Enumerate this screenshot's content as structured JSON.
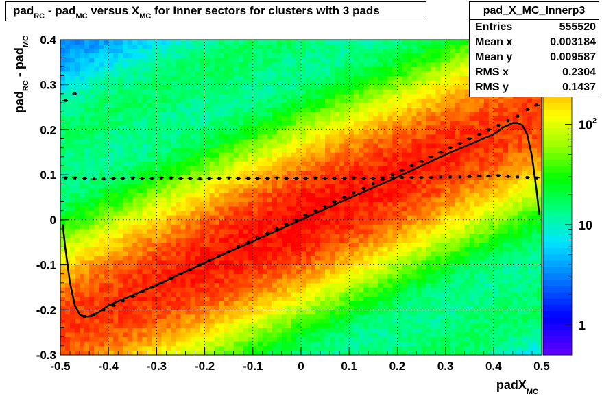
{
  "chart_data": {
    "type": "heatmap",
    "title": {
      "parts": [
        "pad",
        "RC",
        " - pad",
        "MC",
        " versus X",
        "MC",
        " for Inner sectors for clusters with 3 pads"
      ]
    },
    "xlabel": {
      "main": "padX",
      "sub": "MC"
    },
    "ylabel": {
      "p1": "pad",
      "s1": "RC",
      "p2": " - pad",
      "s2": "MC"
    },
    "xlim": [
      -0.5,
      0.5
    ],
    "ylim": [
      -0.3,
      0.4
    ],
    "xticks": [
      "-0.5",
      "-0.4",
      "-0.3",
      "-0.2",
      "-0.1",
      "0",
      "0.1",
      "0.2",
      "0.3",
      "0.4",
      "0.5"
    ],
    "yticks": [
      "-0.3",
      "-0.2",
      "-0.1",
      "0",
      "0.1",
      "0.2",
      "0.3",
      "0.4"
    ],
    "z_scale": "log",
    "zlim": [
      0.5,
      700
    ],
    "z_tick_labels": [
      {
        "value": 1,
        "base": "1",
        "exp": ""
      },
      {
        "value": 10,
        "base": "10",
        "exp": ""
      },
      {
        "value": 100,
        "base": "10",
        "exp": "2"
      }
    ],
    "grid": true,
    "stats": {
      "name": "pad_X_MC_Innerp3",
      "rows": [
        {
          "label": "Entries",
          "value": "555520"
        },
        {
          "label": "Mean x",
          "value": "0.003184"
        },
        {
          "label": "Mean y",
          "value": "0.009587"
        },
        {
          "label": "RMS x",
          "value": "0.2304"
        },
        {
          "label": "RMS y",
          "value": "0.1437"
        }
      ]
    },
    "density_model": {
      "band_slope": 0.48,
      "band_offset": 0.0,
      "band_width": 0.09,
      "peak_counts": 650,
      "secondary_bands": [
        {
          "offset": 0.44,
          "slope": 0.48,
          "width": 0.06,
          "peak": 10
        },
        {
          "offset": -0.44,
          "slope": 0.48,
          "width": 0.06,
          "peak": 10
        }
      ],
      "background": 40
    },
    "series": [
      {
        "kind": "fit-curve",
        "x": [
          -0.495,
          -0.49,
          -0.48,
          -0.47,
          -0.46,
          -0.45,
          -0.44,
          -0.43,
          -0.42,
          -0.4,
          -0.3,
          -0.2,
          -0.1,
          0.0,
          0.1,
          0.2,
          0.3,
          0.4,
          0.42,
          0.43,
          0.44,
          0.45,
          0.46,
          0.47,
          0.48,
          0.49,
          0.495
        ],
        "y": [
          -0.01,
          -0.06,
          -0.14,
          -0.19,
          -0.21,
          -0.215,
          -0.215,
          -0.21,
          -0.205,
          -0.19,
          -0.145,
          -0.095,
          -0.048,
          0.0,
          0.048,
          0.095,
          0.145,
          0.19,
          0.205,
          0.21,
          0.215,
          0.215,
          0.21,
          0.19,
          0.14,
          0.06,
          0.01
        ]
      },
      {
        "kind": "mean-profile",
        "x": [
          -0.49,
          -0.47,
          -0.45,
          -0.43,
          -0.41,
          -0.39,
          -0.37,
          -0.35,
          -0.33,
          -0.31,
          -0.29,
          -0.27,
          -0.25,
          -0.23,
          -0.21,
          -0.19,
          -0.17,
          -0.15,
          -0.13,
          -0.11,
          -0.09,
          -0.07,
          -0.05,
          -0.03,
          -0.01,
          0.01,
          0.03,
          0.05,
          0.07,
          0.09,
          0.11,
          0.13,
          0.15,
          0.17,
          0.19,
          0.21,
          0.23,
          0.25,
          0.27,
          0.29,
          0.31,
          0.33,
          0.35,
          0.37,
          0.39,
          0.41,
          0.43,
          0.45,
          0.47,
          0.49
        ],
        "y": [
          0.265,
          0.28,
          -0.215,
          -0.21,
          -0.2,
          -0.19,
          -0.18,
          -0.17,
          -0.16,
          -0.15,
          -0.14,
          -0.13,
          -0.12,
          -0.11,
          -0.1,
          -0.09,
          -0.08,
          -0.07,
          -0.06,
          -0.05,
          -0.04,
          -0.03,
          -0.02,
          -0.01,
          0.0,
          0.01,
          0.02,
          0.03,
          0.04,
          0.05,
          0.06,
          0.07,
          0.08,
          0.09,
          0.1,
          0.11,
          0.12,
          0.13,
          0.14,
          0.15,
          0.16,
          0.17,
          0.18,
          0.19,
          0.2,
          0.21,
          0.22,
          0.23,
          0.245,
          0.255
        ]
      },
      {
        "kind": "rms-profile",
        "x": [
          -0.49,
          -0.47,
          -0.45,
          -0.43,
          -0.41,
          -0.39,
          -0.37,
          -0.35,
          -0.33,
          -0.31,
          -0.29,
          -0.27,
          -0.25,
          -0.23,
          -0.21,
          -0.19,
          -0.17,
          -0.15,
          -0.13,
          -0.11,
          -0.09,
          -0.07,
          -0.05,
          -0.03,
          -0.01,
          0.01,
          0.03,
          0.05,
          0.07,
          0.09,
          0.11,
          0.13,
          0.15,
          0.17,
          0.19,
          0.21,
          0.23,
          0.25,
          0.27,
          0.29,
          0.31,
          0.33,
          0.35,
          0.37,
          0.39,
          0.41,
          0.43,
          0.45,
          0.47,
          0.49
        ],
        "y": [
          0.093,
          0.093,
          0.092,
          0.091,
          0.091,
          0.092,
          0.092,
          0.093,
          0.092,
          0.092,
          0.093,
          0.093,
          0.092,
          0.092,
          0.091,
          0.092,
          0.092,
          0.093,
          0.092,
          0.092,
          0.092,
          0.092,
          0.093,
          0.092,
          0.092,
          0.092,
          0.093,
          0.092,
          0.092,
          0.092,
          0.093,
          0.092,
          0.092,
          0.093,
          0.093,
          0.094,
          0.094,
          0.094,
          0.094,
          0.095,
          0.095,
          0.095,
          0.096,
          0.097,
          0.097,
          0.098,
          0.096,
          0.095,
          0.094,
          0.093
        ]
      }
    ]
  }
}
